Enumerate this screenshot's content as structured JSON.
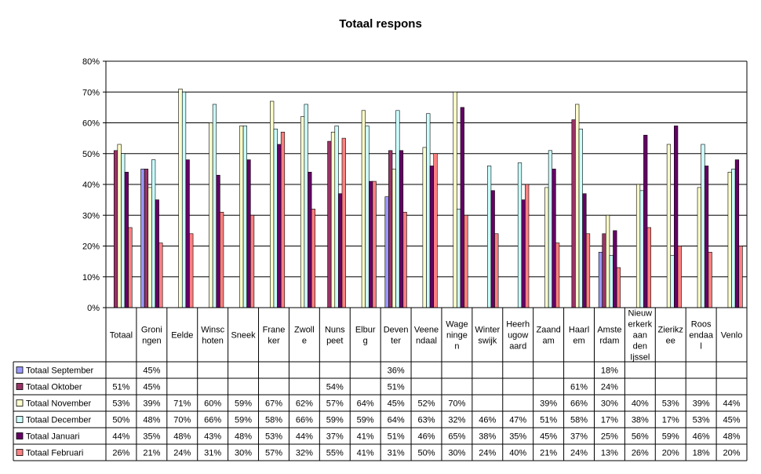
{
  "chart_data": {
    "type": "bar",
    "title": "Totaal respons",
    "ylim": [
      0,
      80
    ],
    "yticks": [
      "0%",
      "10%",
      "20%",
      "30%",
      "40%",
      "50%",
      "60%",
      "70%",
      "80%"
    ],
    "grid": "horizontal",
    "legend_placement": "left of data table",
    "categories": [
      [
        "Totaal"
      ],
      [
        "Groni",
        "ngen"
      ],
      [
        "Eelde"
      ],
      [
        "Winsc",
        "hoten"
      ],
      [
        "Sneek"
      ],
      [
        "Frane",
        "ker"
      ],
      [
        "Zwoll",
        "e"
      ],
      [
        "Nuns",
        "peet"
      ],
      [
        "Elbur",
        "g"
      ],
      [
        "Deven",
        "ter"
      ],
      [
        "Veene",
        "ndaal"
      ],
      [
        "Wage",
        "ninge",
        "n"
      ],
      [
        "Winter",
        "swijk"
      ],
      [
        "Heerh",
        "ugow",
        "aard"
      ],
      [
        "Zaand",
        "am"
      ],
      [
        "Haarl",
        "em"
      ],
      [
        "Amste",
        "rdam"
      ],
      [
        "Nieuw",
        "erkerk",
        "aan",
        "den",
        "Ijssel"
      ],
      [
        "Zierikz",
        "ee"
      ],
      [
        "Roos",
        "endaa",
        "l"
      ],
      [
        "Venlo"
      ]
    ],
    "series": [
      {
        "name": "Totaal September",
        "color": "#9999ff",
        "values": [
          null,
          45,
          null,
          null,
          null,
          null,
          null,
          null,
          null,
          36,
          null,
          null,
          null,
          null,
          null,
          null,
          18,
          null,
          null,
          null,
          null
        ]
      },
      {
        "name": "Totaal Oktober",
        "color": "#993366",
        "values": [
          51,
          45,
          null,
          null,
          null,
          null,
          null,
          54,
          null,
          51,
          null,
          null,
          null,
          null,
          null,
          61,
          24,
          null,
          null,
          null,
          null
        ]
      },
      {
        "name": "Totaal November",
        "color": "#ffffcc",
        "values": [
          53,
          39,
          71,
          60,
          59,
          67,
          62,
          57,
          64,
          45,
          52,
          70,
          null,
          null,
          39,
          66,
          30,
          40,
          53,
          39,
          44
        ]
      },
      {
        "name": "Totaal December",
        "color": "#ccffff",
        "values": [
          50,
          48,
          70,
          66,
          59,
          58,
          66,
          59,
          59,
          64,
          63,
          32,
          46,
          47,
          51,
          58,
          17,
          38,
          17,
          53,
          45
        ]
      },
      {
        "name": "Totaal Januari",
        "color": "#660066",
        "values": [
          44,
          35,
          48,
          43,
          48,
          53,
          44,
          37,
          41,
          51,
          46,
          65,
          38,
          35,
          45,
          37,
          25,
          56,
          59,
          46,
          48
        ]
      },
      {
        "name": "Totaal Februari",
        "color": "#ff8080",
        "values": [
          26,
          21,
          24,
          31,
          30,
          57,
          32,
          55,
          41,
          31,
          50,
          30,
          24,
          40,
          21,
          24,
          13,
          26,
          20,
          18,
          20
        ]
      }
    ]
  }
}
